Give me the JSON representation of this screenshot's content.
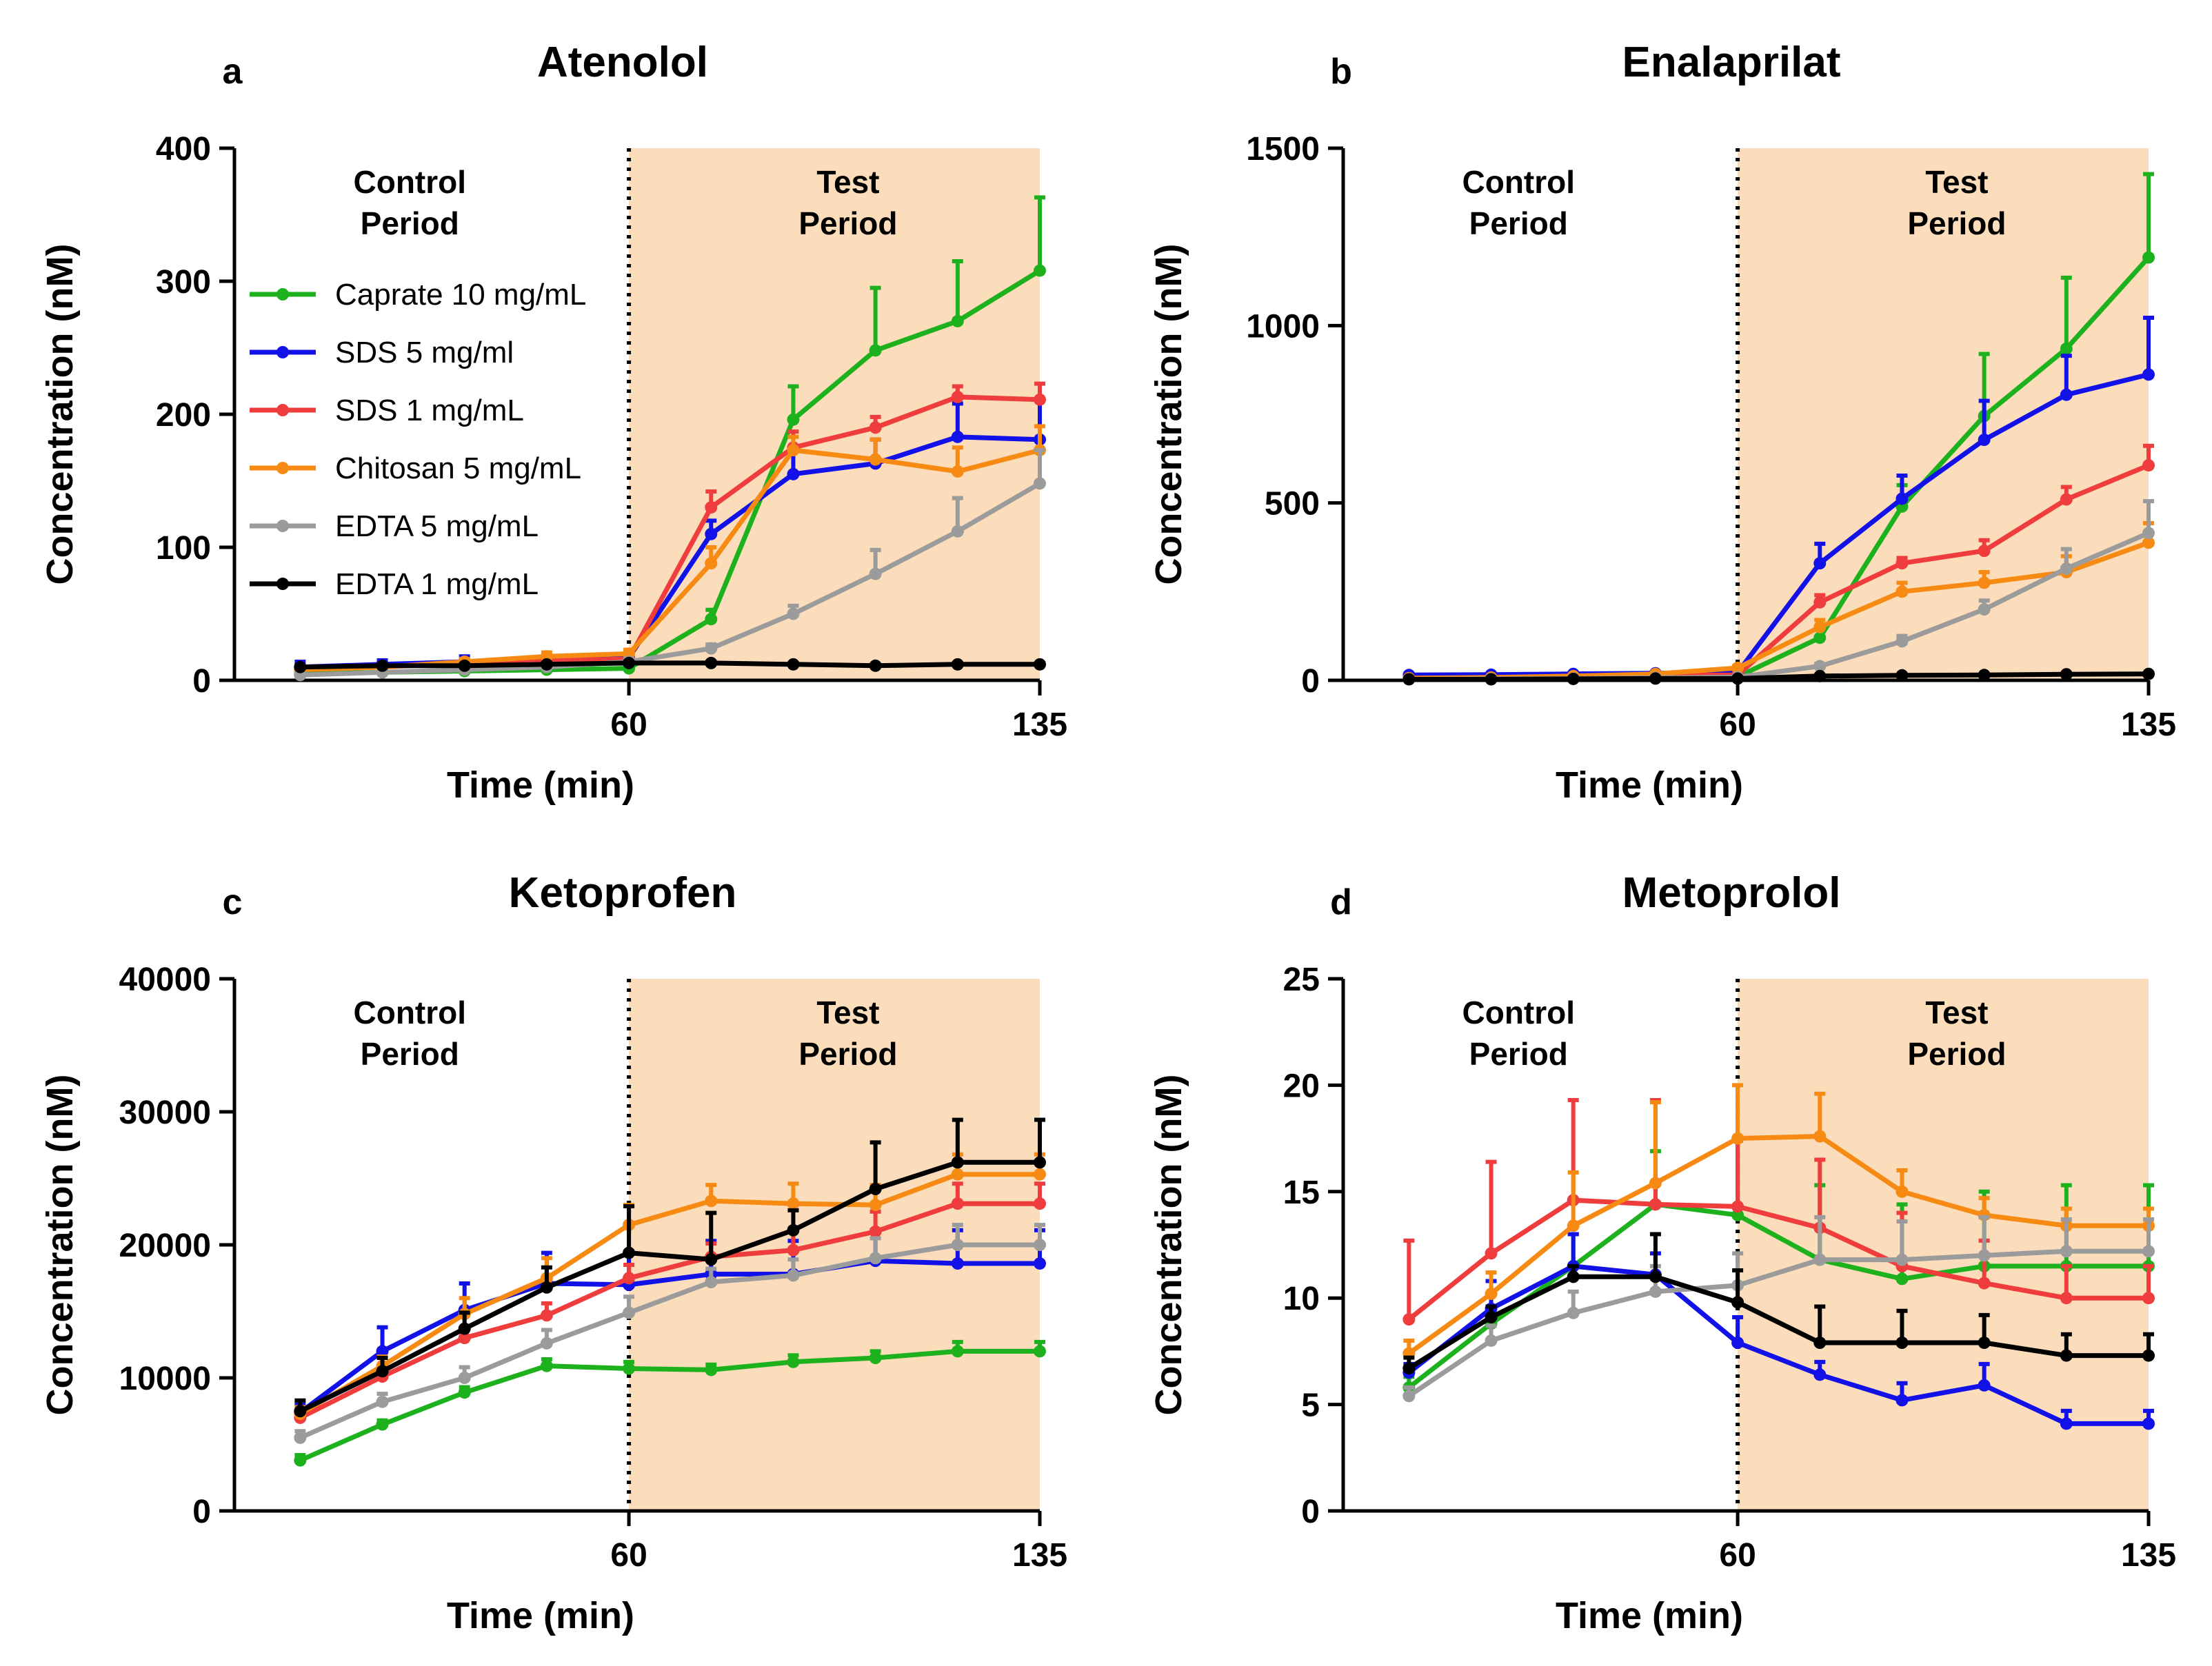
{
  "figure": {
    "series_style": [
      {
        "name": "Caprate 10 mg/mL",
        "color": "#1db21d"
      },
      {
        "name": "SDS 5 mg/ml",
        "color": "#1212e8"
      },
      {
        "name": "SDS 1 mg/mL",
        "color": "#ef3c3c"
      },
      {
        "name": "Chitosan 5 mg/mL",
        "color": "#f68a13"
      },
      {
        "name": "EDTA 5 mg/mL",
        "color": "#9b9b9b"
      },
      {
        "name": "EDTA 1 mg/mL",
        "color": "#000000"
      }
    ],
    "shade_color": "#fbdcbb"
  },
  "chart_data": [
    {
      "type": "line",
      "letter": "a",
      "title": "Atenolol",
      "xlabel": "Time (min)",
      "ylabel": "Concentration (nM)",
      "xlim": [
        -12,
        135
      ],
      "ylim": [
        0,
        400
      ],
      "xticks": [
        60,
        135
      ],
      "yticks": [
        0,
        100,
        200,
        300,
        400
      ],
      "divider_x": 60,
      "regions": [
        {
          "line1": "Control",
          "line2": "Period",
          "x": 20
        },
        {
          "line1": "Test",
          "line2": "Period",
          "x": 100
        }
      ],
      "show_legend": true,
      "x": [
        0,
        15,
        30,
        45,
        60,
        75,
        90,
        105,
        120,
        135
      ],
      "series": [
        {
          "name": "Caprate 10 mg/mL",
          "values": [
            5,
            6,
            7,
            8,
            9,
            46,
            196,
            248,
            270,
            308
          ],
          "errors": [
            1,
            1,
            1,
            1,
            2,
            7,
            25,
            47,
            45,
            55
          ]
        },
        {
          "name": "SDS 5 mg/ml",
          "values": [
            10,
            12,
            14,
            15,
            17,
            110,
            155,
            163,
            183,
            181
          ],
          "errors": [
            4,
            3,
            4,
            3,
            3,
            10,
            18,
            18,
            25,
            30
          ]
        },
        {
          "name": "SDS 1 mg/mL",
          "values": [
            8,
            10,
            13,
            15,
            16,
            130,
            175,
            190,
            213,
            211
          ],
          "errors": [
            2,
            2,
            3,
            2,
            3,
            12,
            12,
            8,
            8,
            12
          ]
        },
        {
          "name": "Chitosan 5 mg/mL",
          "values": [
            8,
            10,
            14,
            18,
            20,
            88,
            173,
            166,
            157,
            173
          ],
          "errors": [
            2,
            2,
            2,
            3,
            3,
            12,
            10,
            15,
            18,
            18
          ]
        },
        {
          "name": "EDTA 5 mg/mL",
          "values": [
            4,
            6,
            8,
            10,
            14,
            24,
            50,
            80,
            112,
            148
          ],
          "errors": [
            1,
            1,
            1,
            1,
            2,
            3,
            6,
            18,
            25,
            25
          ]
        },
        {
          "name": "EDTA 1 mg/mL",
          "values": [
            10,
            11,
            11,
            12,
            13,
            13,
            12,
            11,
            12,
            12
          ],
          "errors": [
            1,
            1,
            1,
            1,
            1,
            1,
            1,
            1,
            1,
            1
          ]
        }
      ]
    },
    {
      "type": "line",
      "letter": "b",
      "title": "Enalaprilat",
      "xlabel": "Time (min)",
      "ylabel": "Concentration (nM)",
      "xlim": [
        -12,
        135
      ],
      "ylim": [
        0,
        1500
      ],
      "xticks": [
        60,
        135
      ],
      "yticks": [
        0,
        500,
        1000,
        1500
      ],
      "divider_x": 60,
      "regions": [
        {
          "line1": "Control",
          "line2": "Period",
          "x": 20
        },
        {
          "line1": "Test",
          "line2": "Period",
          "x": 100
        }
      ],
      "show_legend": false,
      "x": [
        0,
        15,
        30,
        45,
        60,
        75,
        90,
        105,
        120,
        135
      ],
      "series": [
        {
          "name": "Caprate 10 mg/mL",
          "values": [
            5,
            6,
            7,
            8,
            10,
            120,
            490,
            745,
            935,
            1192
          ],
          "errors": [
            2,
            2,
            2,
            2,
            3,
            25,
            60,
            175,
            200,
            235
          ]
        },
        {
          "name": "SDS 5 mg/ml",
          "values": [
            15,
            16,
            18,
            20,
            22,
            330,
            512,
            678,
            805,
            862
          ],
          "errors": [
            3,
            3,
            3,
            3,
            5,
            55,
            65,
            110,
            110,
            160
          ]
        },
        {
          "name": "SDS 1 mg/mL",
          "values": [
            6,
            7,
            10,
            14,
            15,
            220,
            330,
            365,
            510,
            606
          ],
          "errors": [
            2,
            2,
            2,
            3,
            3,
            20,
            15,
            30,
            35,
            55
          ]
        },
        {
          "name": "Chitosan 5 mg/mL",
          "values": [
            6,
            8,
            12,
            18,
            35,
            150,
            250,
            275,
            305,
            388
          ],
          "errors": [
            2,
            2,
            2,
            3,
            5,
            20,
            25,
            30,
            45,
            55
          ]
        },
        {
          "name": "EDTA 5 mg/mL",
          "values": [
            3,
            4,
            5,
            7,
            9,
            40,
            110,
            200,
            315,
            415
          ],
          "errors": [
            1,
            1,
            1,
            1,
            2,
            6,
            15,
            25,
            55,
            90
          ]
        },
        {
          "name": "EDTA 1 mg/mL",
          "values": [
            3,
            3,
            4,
            5,
            5,
            12,
            14,
            15,
            17,
            18
          ],
          "errors": [
            1,
            1,
            1,
            1,
            1,
            2,
            2,
            2,
            2,
            2
          ]
        }
      ]
    },
    {
      "type": "line",
      "letter": "c",
      "title": "Ketoprofen",
      "xlabel": "Time (min)",
      "ylabel": "Concentration (nM)",
      "xlim": [
        -12,
        135
      ],
      "ylim": [
        0,
        40000
      ],
      "xticks": [
        60,
        135
      ],
      "yticks": [
        0,
        10000,
        20000,
        30000,
        40000
      ],
      "divider_x": 60,
      "regions": [
        {
          "line1": "Control",
          "line2": "Period",
          "x": 20
        },
        {
          "line1": "Test",
          "line2": "Period",
          "x": 100
        }
      ],
      "show_legend": false,
      "x": [
        0,
        15,
        30,
        45,
        60,
        75,
        90,
        105,
        120,
        135
      ],
      "series": [
        {
          "name": "Caprate 10 mg/mL",
          "values": [
            3800,
            6500,
            8900,
            10900,
            10700,
            10600,
            11200,
            11500,
            12000,
            12000
          ],
          "errors": [
            400,
            300,
            400,
            500,
            500,
            400,
            500,
            500,
            700,
            700
          ]
        },
        {
          "name": "SDS 5 mg/ml",
          "values": [
            7400,
            12000,
            15100,
            17100,
            17000,
            17800,
            17800,
            18800,
            18600,
            18600
          ],
          "errors": [
            600,
            1800,
            2000,
            2300,
            2500,
            2500,
            2500,
            2300,
            2500,
            2500
          ]
        },
        {
          "name": "SDS 1 mg/mL",
          "values": [
            7000,
            10100,
            13000,
            14700,
            17500,
            19100,
            19600,
            21000,
            23100,
            23100
          ],
          "errors": [
            500,
            700,
            800,
            900,
            1000,
            1000,
            1500,
            1500,
            1500,
            1500
          ]
        },
        {
          "name": "Chitosan 5 mg/mL",
          "values": [
            7300,
            10900,
            14800,
            17500,
            21500,
            23300,
            23100,
            23000,
            25300,
            25300
          ],
          "errors": [
            500,
            700,
            1200,
            1500,
            1500,
            1200,
            1500,
            1500,
            1500,
            1500
          ]
        },
        {
          "name": "EDTA 5 mg/mL",
          "values": [
            5500,
            8200,
            10000,
            12600,
            14900,
            17200,
            17700,
            19000,
            20000,
            20000
          ],
          "errors": [
            500,
            600,
            800,
            1000,
            1200,
            1000,
            1200,
            1500,
            1500,
            1500
          ]
        },
        {
          "name": "EDTA 1 mg/mL",
          "values": [
            7500,
            10500,
            13700,
            16800,
            19400,
            18900,
            21100,
            24200,
            26200,
            26200
          ],
          "errors": [
            800,
            1000,
            1200,
            1500,
            3500,
            3500,
            1500,
            3500,
            3200,
            3200
          ]
        }
      ]
    },
    {
      "type": "line",
      "letter": "d",
      "title": "Metoprolol",
      "xlabel": "Time (min)",
      "ylabel": "Concentration (nM)",
      "xlim": [
        -12,
        135
      ],
      "ylim": [
        0,
        25
      ],
      "xticks": [
        60,
        135
      ],
      "yticks": [
        0,
        5,
        10,
        15,
        20,
        25
      ],
      "divider_x": 60,
      "regions": [
        {
          "line1": "Control",
          "line2": "Period",
          "x": 20
        },
        {
          "line1": "Test",
          "line2": "Period",
          "x": 100
        }
      ],
      "show_legend": false,
      "x": [
        0,
        15,
        30,
        45,
        60,
        75,
        90,
        105,
        120,
        135
      ],
      "series": [
        {
          "name": "Caprate 10 mg/mL",
          "values": [
            5.8,
            8.8,
            11.5,
            14.4,
            13.9,
            11.8,
            10.9,
            11.5,
            11.5,
            11.5
          ],
          "errors": [
            0.5,
            0.5,
            1.5,
            2.5,
            3.5,
            3.5,
            3.5,
            3.5,
            3.8,
            3.8
          ]
        },
        {
          "name": "SDS 5 mg/ml",
          "values": [
            6.5,
            9.5,
            11.5,
            11.1,
            7.9,
            6.4,
            5.2,
            5.9,
            4.1,
            4.1
          ],
          "errors": [
            0.4,
            1.3,
            1.5,
            1.0,
            1.2,
            0.6,
            0.8,
            1.0,
            0.6,
            0.6
          ]
        },
        {
          "name": "SDS 1 mg/mL",
          "values": [
            9.0,
            12.1,
            14.6,
            14.4,
            14.3,
            13.3,
            11.5,
            10.7,
            10.0,
            10.0
          ],
          "errors": [
            3.7,
            4.3,
            4.7,
            4.9,
            3.2,
            3.2,
            2.5,
            2.0,
            1.5,
            1.5
          ]
        },
        {
          "name": "Chitosan 5 mg/mL",
          "values": [
            7.4,
            10.2,
            13.4,
            15.4,
            17.5,
            17.6,
            15.0,
            13.9,
            13.4,
            13.4
          ],
          "errors": [
            0.6,
            1.0,
            2.5,
            3.8,
            2.5,
            2.0,
            1.0,
            0.8,
            0.8,
            0.8
          ]
        },
        {
          "name": "EDTA 5 mg/mL",
          "values": [
            5.4,
            8.0,
            9.3,
            10.3,
            10.6,
            11.8,
            11.8,
            12.0,
            12.2,
            12.2
          ],
          "errors": [
            0.4,
            0.7,
            1.0,
            1.2,
            1.5,
            2.0,
            1.8,
            1.8,
            1.5,
            1.5
          ]
        },
        {
          "name": "EDTA 1 mg/mL",
          "values": [
            6.7,
            9.1,
            11.0,
            11.0,
            9.8,
            7.9,
            7.9,
            7.9,
            7.3,
            7.3
          ],
          "errors": [
            0.5,
            0.5,
            0.5,
            2.0,
            1.5,
            1.7,
            1.5,
            1.3,
            1.0,
            1.0
          ]
        }
      ]
    }
  ]
}
